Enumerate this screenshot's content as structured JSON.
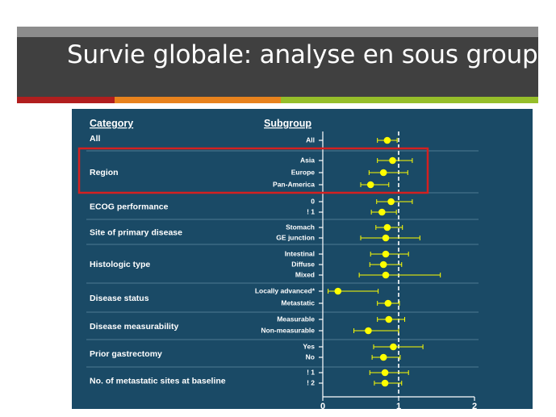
{
  "slide": {
    "title": "Survie globale: analyse en sous groupe",
    "colors": {
      "title_bar": "#404040",
      "top_band": "#8c8c8c",
      "stripe_red": "#b11e1e",
      "stripe_orange": "#e8821d",
      "stripe_green": "#96be2a",
      "chart_bg": "#1a4a66",
      "marker": "#ffff00",
      "highlight_box": "#d42020"
    }
  },
  "chart_data": {
    "type": "forest",
    "column_headers": {
      "category": "Category",
      "subgroup": "Subgroup"
    },
    "xlim": [
      0,
      2
    ],
    "x_ticks": [
      "0",
      "1",
      "2"
    ],
    "reference_line": 1,
    "highlight_category": "Region",
    "categories": [
      {
        "label": "All",
        "rows": [
          {
            "subgroup": "All",
            "hr": 0.85,
            "ci": [
              0.72,
              0.98
            ]
          }
        ]
      },
      {
        "label": "Region",
        "rows": [
          {
            "subgroup": "Asia",
            "hr": 0.92,
            "ci": [
              0.72,
              1.18
            ]
          },
          {
            "subgroup": "Europe",
            "hr": 0.8,
            "ci": [
              0.61,
              1.12
            ]
          },
          {
            "subgroup": "Pan-America",
            "hr": 0.63,
            "ci": [
              0.5,
              0.87
            ]
          }
        ]
      },
      {
        "label": "ECOG performance",
        "rows": [
          {
            "subgroup": "0",
            "hr": 0.9,
            "ci": [
              0.71,
              1.18
            ]
          },
          {
            "subgroup": "! 1",
            "hr": 0.78,
            "ci": [
              0.64,
              0.97
            ]
          }
        ]
      },
      {
        "label": "Site of primary disease",
        "rows": [
          {
            "subgroup": "Stomach",
            "hr": 0.85,
            "ci": [
              0.7,
              1.05
            ]
          },
          {
            "subgroup": "GE junction",
            "hr": 0.83,
            "ci": [
              0.5,
              1.28
            ]
          }
        ]
      },
      {
        "label": "Histologic type",
        "rows": [
          {
            "subgroup": "Intestinal",
            "hr": 0.83,
            "ci": [
              0.63,
              1.13
            ]
          },
          {
            "subgroup": "Diffuse",
            "hr": 0.8,
            "ci": [
              0.62,
              1.04
            ]
          },
          {
            "subgroup": "Mixed",
            "hr": 0.83,
            "ci": [
              0.48,
              1.55
            ]
          }
        ]
      },
      {
        "label": "Disease status",
        "rows": [
          {
            "subgroup": "Locally advanced*",
            "hr": 0.2,
            "ci": [
              0.07,
              0.73
            ]
          },
          {
            "subgroup": "Metastatic",
            "hr": 0.86,
            "ci": [
              0.72,
              1.01
            ]
          }
        ]
      },
      {
        "label": "Disease measurability",
        "rows": [
          {
            "subgroup": "Measurable",
            "hr": 0.87,
            "ci": [
              0.72,
              1.08
            ]
          },
          {
            "subgroup": "Non-measurable",
            "hr": 0.6,
            "ci": [
              0.41,
              1.0
            ]
          }
        ]
      },
      {
        "label": "Prior gastrectomy",
        "rows": [
          {
            "subgroup": "Yes",
            "hr": 0.93,
            "ci": [
              0.67,
              1.32
            ]
          },
          {
            "subgroup": "No",
            "hr": 0.8,
            "ci": [
              0.65,
              1.02
            ]
          }
        ]
      },
      {
        "label": "No. of metastatic sites at baseline",
        "rows": [
          {
            "subgroup": "! 1",
            "hr": 0.82,
            "ci": [
              0.62,
              1.13
            ]
          },
          {
            "subgroup": "! 2",
            "hr": 0.82,
            "ci": [
              0.68,
              1.04
            ]
          }
        ]
      }
    ]
  }
}
